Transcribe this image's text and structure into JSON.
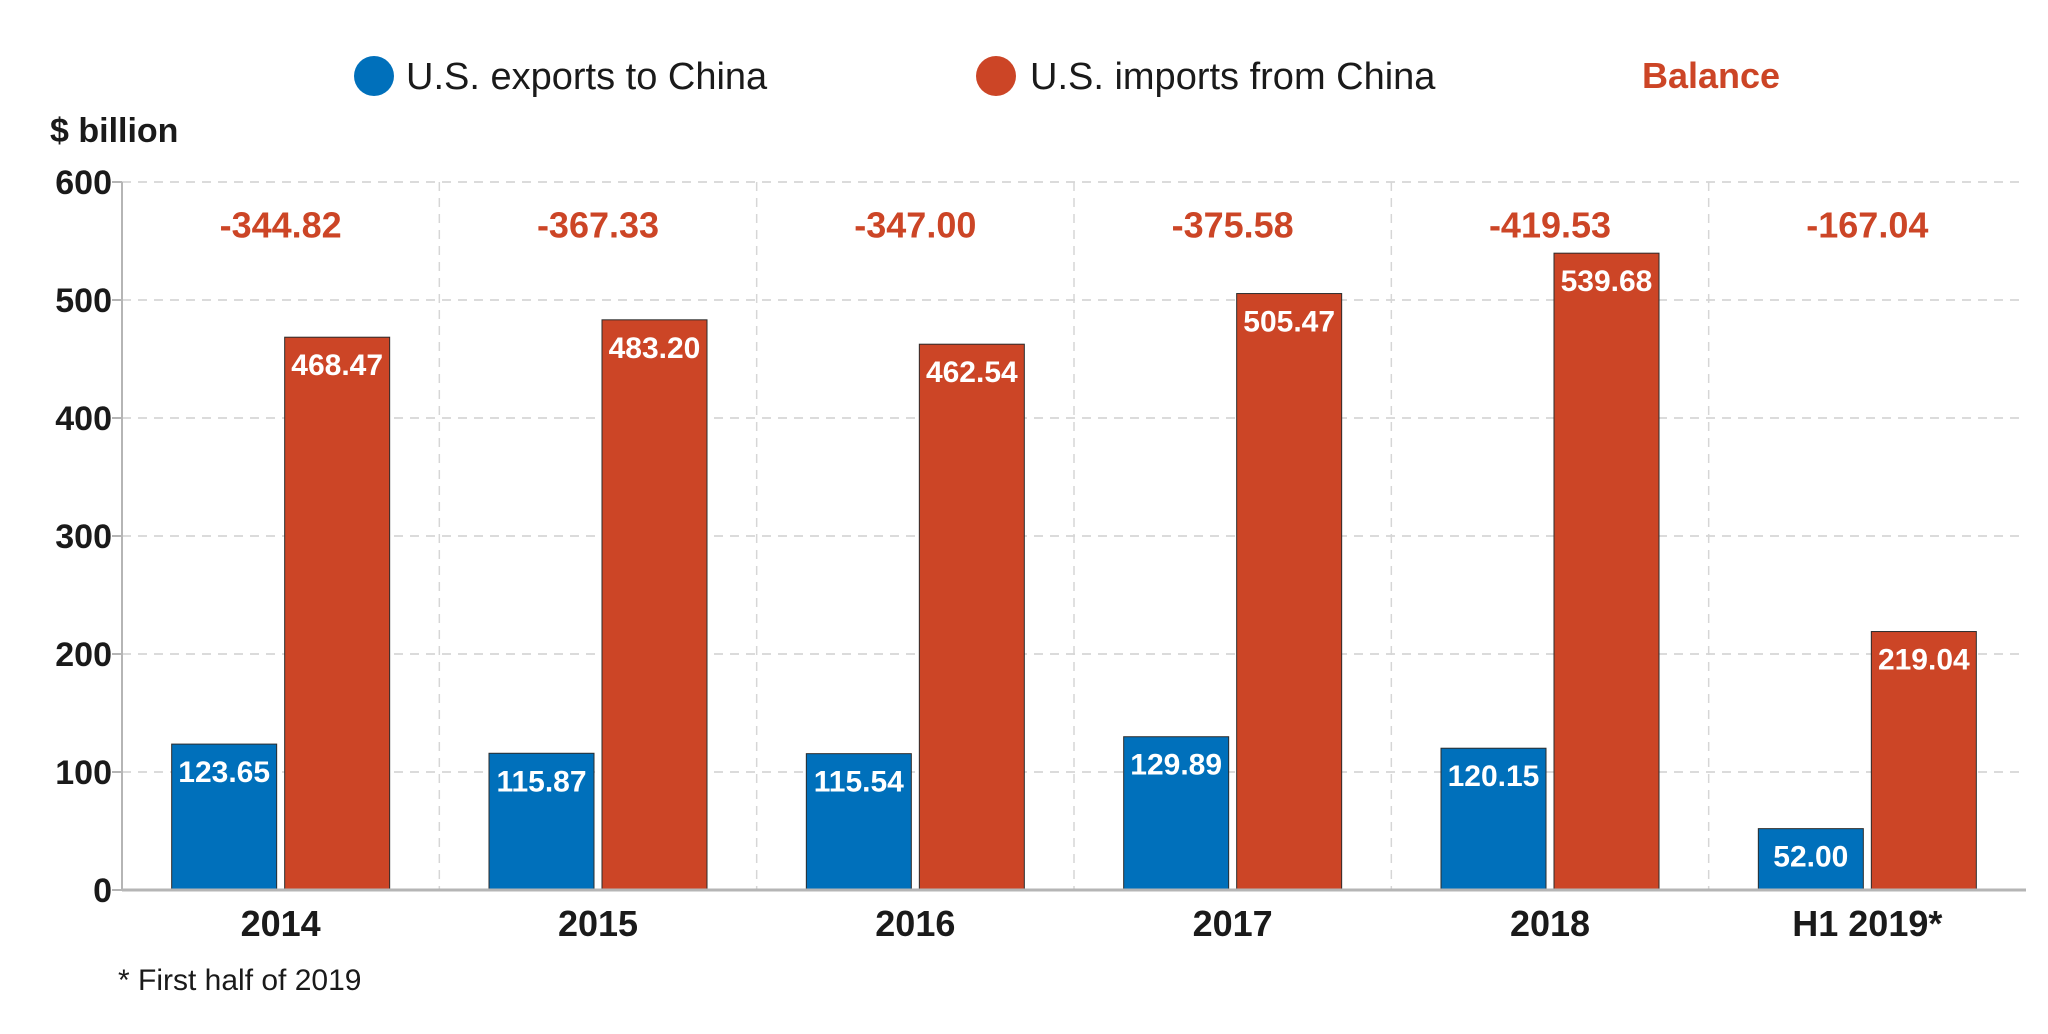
{
  "chart_data": {
    "type": "bar",
    "categories": [
      "2014",
      "2015",
      "2016",
      "2017",
      "2018",
      "H1 2019*"
    ],
    "series": [
      {
        "name": "U.S. exports to China",
        "color": "#0070bb",
        "values": [
          123.65,
          115.87,
          115.54,
          129.89,
          120.15,
          52.0
        ],
        "value_labels": [
          "123.65",
          "115.87",
          "115.54",
          "129.89",
          "120.15",
          "52.00"
        ]
      },
      {
        "name": "U.S. imports from China",
        "color": "#cc4526",
        "values": [
          468.47,
          483.2,
          462.54,
          505.47,
          539.68,
          219.04
        ],
        "value_labels": [
          "468.47",
          "483.20",
          "462.54",
          "505.47",
          "539.68",
          "219.04"
        ]
      }
    ],
    "balance": {
      "name": "Balance",
      "color": "#cc4526",
      "values": [
        -344.82,
        -367.33,
        -347.0,
        -375.58,
        -419.53,
        -167.04
      ],
      "value_labels": [
        "-344.82",
        "-367.33",
        "-347.00",
        "-375.58",
        "-419.53",
        "-167.04"
      ]
    },
    "ylabel": "$ billion",
    "ylim": [
      0,
      600
    ],
    "yticks": [
      0,
      100,
      200,
      300,
      400,
      500,
      600
    ],
    "ytick_labels": [
      "0",
      "100",
      "200",
      "300",
      "400",
      "500",
      "600"
    ],
    "grid": true,
    "legend_position": "top",
    "footnote": "* First half of 2019"
  }
}
